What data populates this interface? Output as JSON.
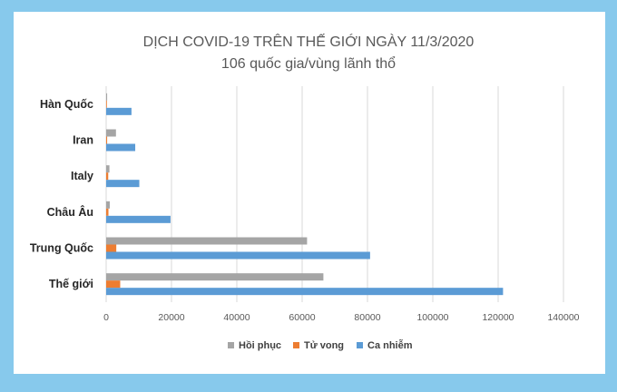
{
  "chart_data": {
    "type": "bar",
    "orientation": "horizontal",
    "title": "DỊCH COVID-19 TRÊN THẾ GIỚI NGÀY 11/3/2020",
    "subtitle": "106 quốc gia/vùng lãnh thổ",
    "categories": [
      "Hàn Quốc",
      "Iran",
      "Italy",
      "Châu Âu",
      "Trung Quốc",
      "Thế giới"
    ],
    "series": [
      {
        "name": "Hồi phục",
        "color": "#a5a5a5",
        "values": [
          300,
          3000,
          1000,
          1100,
          61500,
          66500
        ]
      },
      {
        "name": "Tử vong",
        "color": "#ed7d31",
        "values": [
          60,
          300,
          630,
          700,
          3100,
          4300
        ]
      },
      {
        "name": "Ca nhiễm",
        "color": "#5b9bd5",
        "values": [
          7750,
          8900,
          10150,
          19700,
          80800,
          121500
        ]
      }
    ],
    "xlim": [
      0,
      140000
    ],
    "xticks": [
      0,
      20000,
      40000,
      60000,
      80000,
      100000,
      120000,
      140000
    ],
    "grid": true,
    "legend_position": "bottom"
  }
}
